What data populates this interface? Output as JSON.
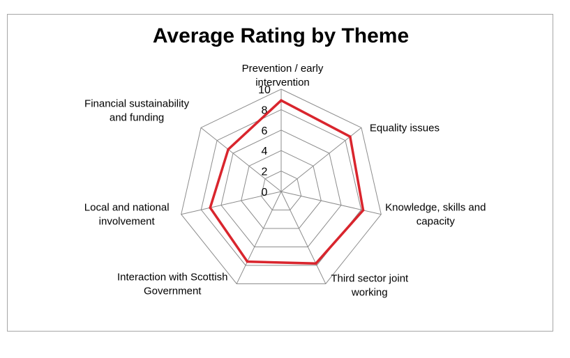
{
  "chart_data": {
    "type": "radar",
    "title": "Average Rating by Theme",
    "categories": [
      [
        "Prevention / early",
        "intervention"
      ],
      [
        "Equality issues"
      ],
      [
        "Knowledge, skills and",
        "capacity"
      ],
      [
        "Third sector joint",
        "working"
      ],
      [
        "Interaction with Scottish",
        "Government"
      ],
      [
        "Local and national",
        "involvement"
      ],
      [
        "Financial sustainability",
        "and funding"
      ]
    ],
    "series": [
      {
        "values": [
          8.9,
          8.6,
          8.2,
          7.8,
          7.6,
          7.1,
          6.6
        ]
      }
    ],
    "rlim": [
      0,
      10
    ],
    "ticks": [
      "0",
      "2",
      "4",
      "6",
      "8",
      "10"
    ],
    "tick_values": [
      0,
      2,
      4,
      6,
      8,
      10
    ],
    "grid": true,
    "legend": "none",
    "colors": {
      "series": "#d9252d",
      "grid": "#8c8c8c"
    }
  }
}
